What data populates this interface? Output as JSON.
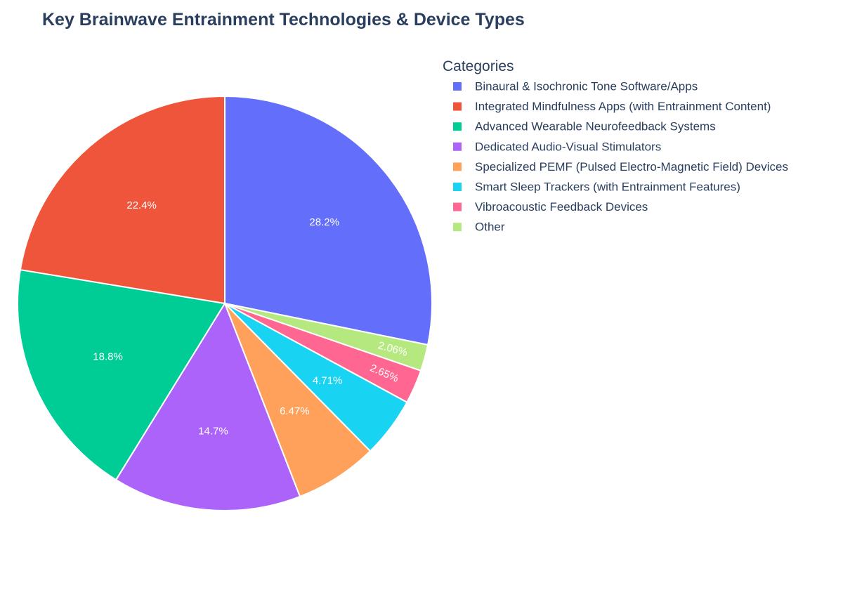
{
  "chart_data": {
    "type": "pie",
    "title": "Key Brainwave Entrainment Technologies & Device Types",
    "legend_title": "Categories",
    "legend_position": "top-right",
    "direction": "clockwise",
    "start_angle": "12 o'clock",
    "categories": [
      "Binaural & Isochronic Tone Software/Apps",
      "Integrated Mindfulness Apps (with Entrainment Content)",
      "Advanced Wearable Neurofeedback Systems",
      "Dedicated Audio-Visual Stimulators",
      "Specialized PEMF (Pulsed Electro-Magnetic Field) Devices",
      "Smart Sleep Trackers (with Entrainment Features)",
      "Vibroacoustic Feedback Devices",
      "Other"
    ],
    "values": [
      28.2,
      22.4,
      18.8,
      14.7,
      6.47,
      4.71,
      2.65,
      2.06
    ],
    "labels": [
      "28.2%",
      "22.4%",
      "18.8%",
      "14.7%",
      "6.47%",
      "4.71%",
      "2.65%",
      "2.06%"
    ],
    "slice_order": [
      0,
      7,
      6,
      5,
      4,
      3,
      2,
      1
    ],
    "colors": [
      "#636efa",
      "#ef553b",
      "#00cc96",
      "#ab63fa",
      "#ffa15a",
      "#19d3f3",
      "#ff6692",
      "#b6e880"
    ]
  }
}
